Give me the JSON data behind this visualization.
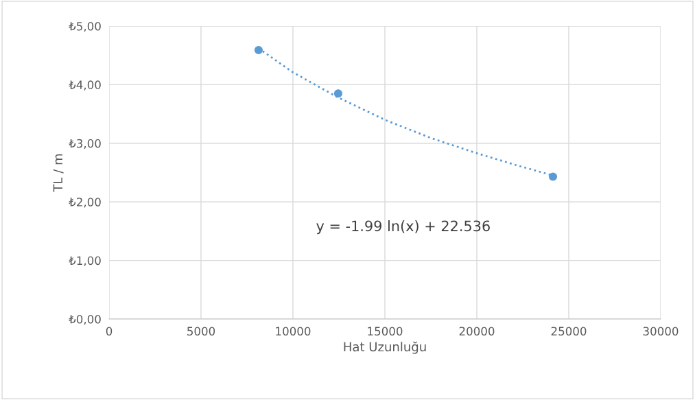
{
  "chart_data": {
    "type": "scatter",
    "xlabel": "Hat Uzunluğu",
    "ylabel": "TL / m",
    "series": [
      {
        "color": "#5b9bd5",
        "marker": "circle",
        "x": [
          8130,
          12460,
          24140
        ],
        "values": [
          4.59,
          3.85,
          2.43
        ]
      },
      {
        "type": "line",
        "color": "#5b9bd5",
        "line_style": "dotted",
        "marker": "none",
        "x": [
          8130,
          10000,
          12460,
          15000,
          17500,
          20000,
          22000,
          24140
        ],
        "values": [
          4.62,
          4.21,
          3.78,
          3.4,
          3.09,
          2.83,
          2.64,
          2.45
        ]
      }
    ],
    "annotations": [
      "y = -1.99 ln(x) + 22.536"
    ],
    "xlim": [
      0,
      30000
    ],
    "xticks": [
      0,
      5000,
      10000,
      15000,
      20000,
      25000,
      30000
    ],
    "ylim": [
      0,
      5
    ],
    "yticks": [
      {
        "value": 0,
        "label": "₺0,00"
      },
      {
        "value": 1,
        "label": "₺1,00"
      },
      {
        "value": 2,
        "label": "₺2,00"
      },
      {
        "value": 3,
        "label": "₺3,00"
      },
      {
        "value": 4,
        "label": "₺4,00"
      },
      {
        "value": 5,
        "label": "₺5,00"
      }
    ],
    "grid": true
  }
}
